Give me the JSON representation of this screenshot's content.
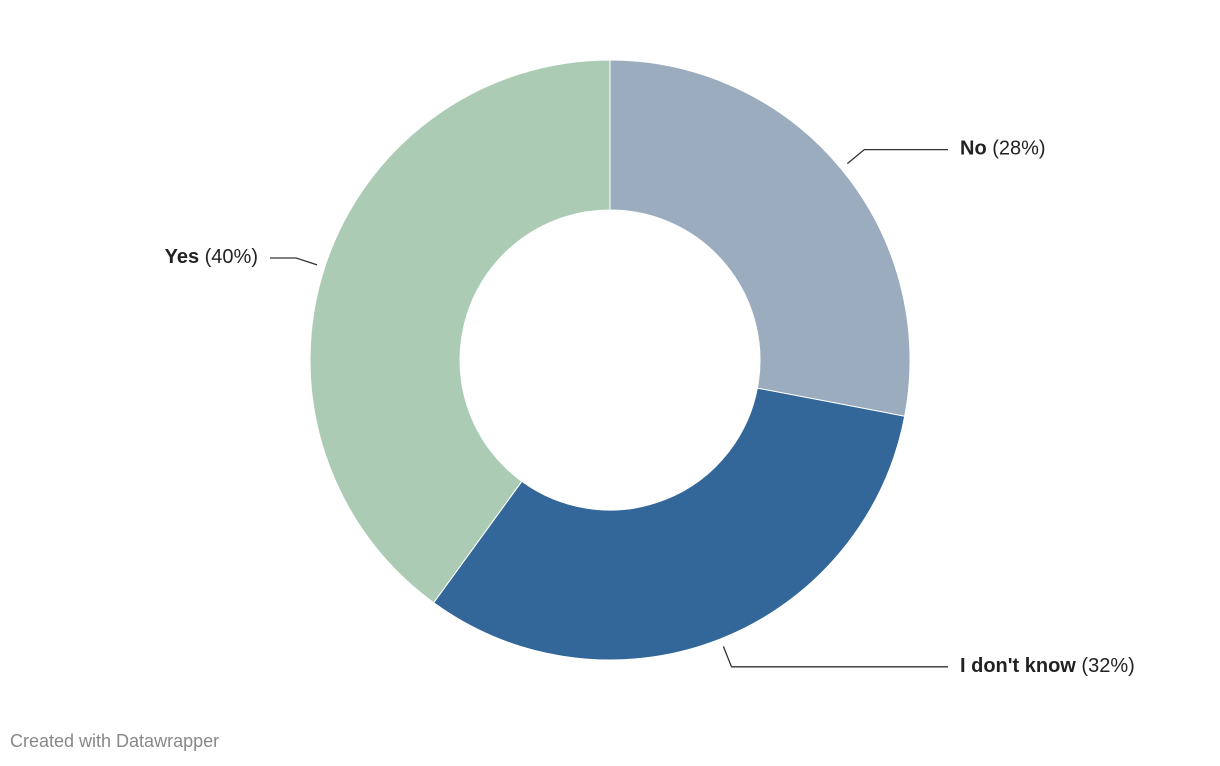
{
  "chart_data": {
    "type": "donut",
    "categories": [
      "No",
      "I don't know",
      "Yes"
    ],
    "values": [
      28,
      32,
      40
    ],
    "value_labels": [
      "(28%)",
      "(32%)",
      "(40%)"
    ],
    "colors": [
      "#9aacbe",
      "#336699",
      "#abcbb4"
    ],
    "credit": "Created with Datawrapper"
  }
}
